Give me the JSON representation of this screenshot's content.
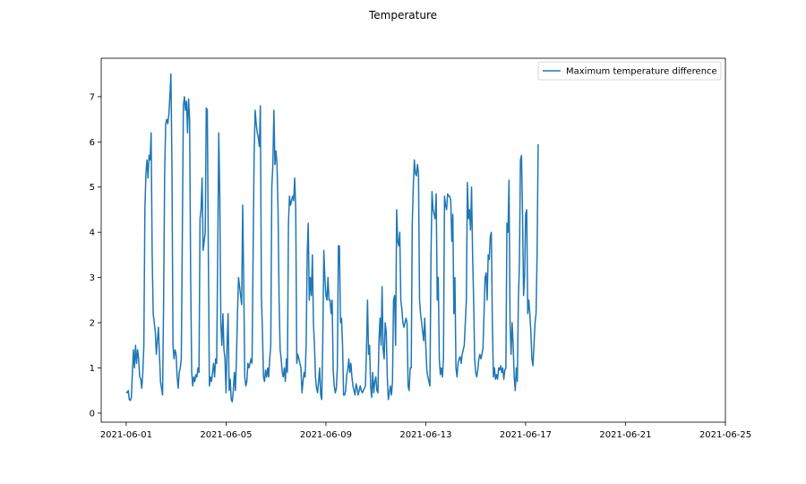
{
  "chart_data": {
    "type": "line",
    "title": "Temperature",
    "xlabel": "",
    "ylabel": "",
    "x_range": [
      "2021-05-31T00:00",
      "2021-06-25T00:00"
    ],
    "ylim": [
      -0.2,
      7.85
    ],
    "grid": false,
    "legend_position": "top-right",
    "xticks": [
      "2021-06-01",
      "2021-06-05",
      "2021-06-09",
      "2021-06-13",
      "2021-06-17",
      "2021-06-21",
      "2021-06-25"
    ],
    "yticks": [
      0,
      1,
      2,
      3,
      4,
      5,
      6,
      7
    ],
    "series": [
      {
        "name": "Maximum temperature difference",
        "color": "#1f77b4",
        "start": "2021-06-01T00:00",
        "step_hours": 1,
        "values": [
          0.47,
          0.45,
          0.5,
          0.3,
          0.28,
          0.35,
          0.9,
          1.4,
          1.0,
          1.5,
          1.1,
          1.4,
          1.2,
          0.8,
          0.75,
          0.55,
          0.9,
          1.5,
          4.5,
          5.3,
          5.6,
          5.2,
          5.7,
          5.6,
          6.2,
          3.5,
          2.2,
          2.0,
          1.8,
          1.3,
          1.6,
          1.9,
          1.3,
          0.7,
          0.55,
          0.4,
          2.5,
          5.3,
          6.4,
          6.5,
          6.4,
          6.6,
          7.0,
          7.5,
          5.5,
          1.5,
          1.2,
          1.4,
          1.3,
          0.8,
          0.55,
          0.9,
          1.0,
          1.2,
          4.0,
          6.8,
          7.0,
          6.7,
          6.9,
          6.2,
          6.95,
          6.5,
          3.0,
          0.9,
          0.6,
          0.8,
          0.7,
          0.85,
          0.8,
          1.0,
          0.9,
          4.3,
          4.5,
          5.2,
          3.6,
          3.8,
          4.0,
          6.75,
          6.7,
          3.5,
          0.6,
          0.8,
          0.7,
          0.9,
          1.1,
          0.8,
          1.2,
          1.1,
          3.5,
          6.2,
          4.8,
          2.0,
          1.5,
          2.2,
          1.4,
          1.2,
          0.45,
          1.5,
          2.2,
          0.5,
          0.75,
          0.3,
          0.25,
          0.5,
          0.9,
          0.5,
          1.2,
          2.2,
          3.0,
          2.8,
          2.6,
          2.4,
          4.6,
          2.9,
          0.8,
          0.6,
          0.7,
          1.1,
          1.0,
          1.1,
          1.2,
          1.1,
          3.5,
          5.7,
          6.7,
          6.4,
          6.2,
          6.1,
          5.9,
          6.8,
          2.6,
          1.8,
          0.8,
          0.7,
          0.95,
          0.8,
          1.0,
          0.8,
          1.2,
          1.5,
          5.0,
          5.5,
          6.7,
          5.5,
          5.8,
          5.5,
          4.5,
          2.5,
          1.4,
          1.2,
          0.9,
          0.8,
          1.0,
          0.7,
          1.2,
          0.9,
          4.2,
          4.8,
          4.6,
          4.7,
          4.8,
          4.7,
          5.2,
          4.5,
          1.1,
          1.3,
          1.2,
          1.1,
          1.0,
          0.45,
          0.7,
          0.9,
          0.8,
          1.5,
          3.5,
          4.2,
          2.5,
          3.0,
          2.6,
          3.5,
          2.0,
          1.5,
          0.8,
          0.55,
          0.45,
          0.7,
          1.0,
          0.4,
          0.3,
          1.6,
          3.6,
          3.0,
          2.6,
          2.5,
          3.0,
          2.5,
          2.5,
          2.2,
          2.5,
          0.95,
          0.6,
          0.45,
          0.55,
          1.0,
          3.7,
          3.7,
          2.0,
          2.1,
          1.5,
          0.4,
          0.4,
          0.5,
          0.85,
          0.95,
          1.2,
          0.9,
          1.1,
          0.8,
          0.6,
          0.5,
          0.4,
          0.65,
          0.55,
          0.4,
          0.5,
          0.6,
          0.5,
          0.45,
          0.5,
          0.55,
          0.6,
          1.4,
          2.5,
          1.3,
          1.5,
          0.6,
          0.35,
          0.9,
          0.45,
          0.7,
          0.8,
          0.5,
          0.45,
          1.6,
          2.1,
          1.5,
          2.8,
          1.4,
          1.2,
          2.0,
          1.8,
          0.8,
          0.3,
          0.45,
          0.6,
          0.4,
          0.7,
          2.5,
          2.6,
          1.5,
          4.5,
          3.8,
          3.7,
          4.0,
          2.5,
          2.3,
          2.0,
          1.9,
          2.0,
          2.1,
          2.0,
          0.6,
          0.5,
          1.0,
          1.0,
          4.2,
          5.0,
          5.6,
          5.3,
          5.25,
          5.5,
          5.3,
          2.5,
          2.2,
          2.0,
          1.8,
          1.6,
          2.1,
          1.5,
          0.95,
          0.8,
          0.7,
          0.6,
          3.5,
          4.9,
          4.5,
          4.4,
          4.3,
          4.85,
          2.5,
          3.0,
          1.2,
          0.85,
          1.0,
          0.8,
          1.2,
          4.8,
          4.6,
          4.5,
          4.85,
          4.8,
          4.8,
          4.7,
          3.8,
          4.4,
          2.2,
          3.0,
          1.0,
          0.8,
          1.1,
          1.2,
          1.25,
          1.1,
          1.3,
          1.4,
          1.5,
          2.0,
          2.5,
          5.1,
          4.3,
          4.5,
          4.05,
          5.0,
          3.5,
          2.5,
          1.2,
          0.9,
          0.8,
          0.95,
          1.2,
          1.3,
          1.2,
          1.3,
          1.45,
          2.2,
          3.0,
          3.1,
          2.5,
          3.5,
          3.4,
          3.9,
          4.0,
          2.0,
          0.8,
          1.0,
          0.75,
          0.85,
          0.75,
          1.0,
          0.95,
          1.05,
          0.9,
          1.0,
          0.75,
          0.95,
          1.0,
          4.2,
          4.0,
          5.15,
          2.0,
          1.3,
          2.0,
          1.5,
          0.8,
          0.5,
          1.0,
          0.7,
          2.5,
          3.3,
          5.6,
          5.7,
          4.4,
          2.6,
          3.0,
          4.4,
          4.5,
          2.2,
          2.5,
          2.2,
          1.8,
          1.2,
          1.05,
          1.5,
          2.0,
          2.2,
          3.5,
          5.95
        ]
      }
    ]
  }
}
